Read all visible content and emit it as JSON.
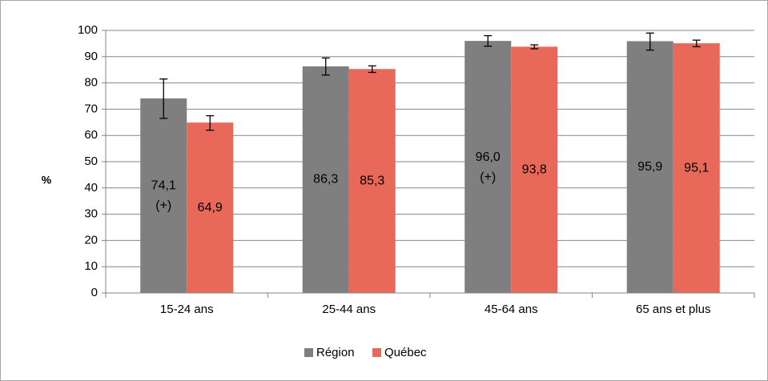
{
  "chart_data": {
    "type": "bar",
    "title": "",
    "ylabel": "%",
    "xlabel": "",
    "ylim": [
      0,
      100
    ],
    "yticks": [
      0,
      10,
      20,
      30,
      40,
      50,
      60,
      70,
      80,
      90,
      100
    ],
    "grid": true,
    "legend_position": "bottom",
    "categories": [
      "15-24 ans",
      "25-44 ans",
      "45-64 ans",
      "65 ans et plus"
    ],
    "series": [
      {
        "name": "Région",
        "color": "#7f7f7f",
        "values": [
          74.1,
          86.3,
          96.0,
          95.9
        ],
        "labels": [
          "74,1",
          "86,3",
          "96,0",
          "95,9"
        ],
        "notes": [
          "(+)",
          "",
          "(+)",
          ""
        ],
        "error_low": [
          66.5,
          83.0,
          94.0,
          92.5
        ],
        "error_high": [
          81.5,
          89.5,
          98.0,
          99.0
        ]
      },
      {
        "name": "Québec",
        "color": "#e8695a",
        "values": [
          64.9,
          85.3,
          93.8,
          95.1
        ],
        "labels": [
          "64,9",
          "85,3",
          "93,8",
          "95,1"
        ],
        "notes": [
          "",
          "",
          "",
          ""
        ],
        "error_low": [
          62.0,
          84.0,
          93.0,
          93.8
        ],
        "error_high": [
          67.5,
          86.5,
          94.5,
          96.3
        ]
      }
    ]
  }
}
